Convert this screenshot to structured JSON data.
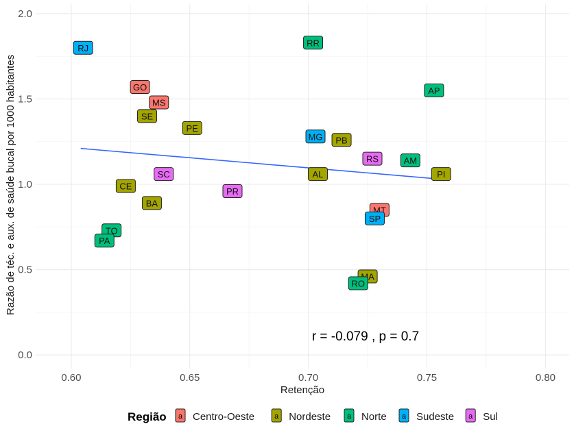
{
  "chart_data": {
    "type": "scatter",
    "xlabel": "Retenção",
    "ylabel": "Razão de téc. e aux. de saúde bucal por 1000 habitantes",
    "xlim": [
      0.585,
      0.81
    ],
    "ylim": [
      -0.08,
      2.06
    ],
    "x_ticks": [
      0.6,
      0.65,
      0.7,
      0.75,
      0.8
    ],
    "x_tick_labels": [
      "0.60",
      "0.65",
      "0.70",
      "0.75",
      "0.80"
    ],
    "y_ticks": [
      0.0,
      0.5,
      1.0,
      1.5,
      2.0
    ],
    "y_tick_labels": [
      "0.0",
      "0.5",
      "1.0",
      "1.5",
      "2.0"
    ],
    "grid": true,
    "annotation": "r = -0.079 , p = 0.7",
    "trendline": {
      "x": [
        0.604,
        0.756
      ],
      "y": [
        1.21,
        1.03
      ]
    },
    "legend": {
      "title": "Região",
      "key_glyph": "a",
      "position": "bottom",
      "entries": [
        {
          "name": "Centro-Oeste",
          "color": "#F8766D"
        },
        {
          "name": "Nordeste",
          "color": "#A3A500"
        },
        {
          "name": "Norte",
          "color": "#00BF7D"
        },
        {
          "name": "Sudeste",
          "color": "#00B0F6"
        },
        {
          "name": "Sul",
          "color": "#E76BF3"
        }
      ]
    },
    "points": [
      {
        "label": "RJ",
        "x": 0.605,
        "y": 1.8,
        "region": "Sudeste"
      },
      {
        "label": "GO",
        "x": 0.629,
        "y": 1.57,
        "region": "Centro-Oeste"
      },
      {
        "label": "MS",
        "x": 0.637,
        "y": 1.48,
        "region": "Centro-Oeste"
      },
      {
        "label": "SE",
        "x": 0.632,
        "y": 1.4,
        "region": "Nordeste"
      },
      {
        "label": "PE",
        "x": 0.651,
        "y": 1.33,
        "region": "Nordeste"
      },
      {
        "label": "RR",
        "x": 0.702,
        "y": 1.83,
        "region": "Norte"
      },
      {
        "label": "AP",
        "x": 0.753,
        "y": 1.55,
        "region": "Norte"
      },
      {
        "label": "MG",
        "x": 0.703,
        "y": 1.28,
        "region": "Sudeste"
      },
      {
        "label": "PB",
        "x": 0.714,
        "y": 1.26,
        "region": "Nordeste"
      },
      {
        "label": "RS",
        "x": 0.727,
        "y": 1.15,
        "region": "Sul"
      },
      {
        "label": "AM",
        "x": 0.743,
        "y": 1.14,
        "region": "Norte"
      },
      {
        "label": "AL",
        "x": 0.704,
        "y": 1.06,
        "region": "Nordeste"
      },
      {
        "label": "PI",
        "x": 0.756,
        "y": 1.06,
        "region": "Nordeste"
      },
      {
        "label": "CE",
        "x": 0.623,
        "y": 0.99,
        "region": "Nordeste"
      },
      {
        "label": "SC",
        "x": 0.639,
        "y": 1.06,
        "region": "Sul"
      },
      {
        "label": "PR",
        "x": 0.668,
        "y": 0.96,
        "region": "Sul"
      },
      {
        "label": "BA",
        "x": 0.634,
        "y": 0.89,
        "region": "Nordeste"
      },
      {
        "label": "MT",
        "x": 0.73,
        "y": 0.85,
        "region": "Centro-Oeste"
      },
      {
        "label": "SP",
        "x": 0.728,
        "y": 0.8,
        "region": "Sudeste"
      },
      {
        "label": "TO",
        "x": 0.617,
        "y": 0.73,
        "region": "Norte"
      },
      {
        "label": "PA",
        "x": 0.614,
        "y": 0.67,
        "region": "Norte"
      },
      {
        "label": "MA",
        "x": 0.725,
        "y": 0.46,
        "region": "Nordeste"
      },
      {
        "label": "RO",
        "x": 0.721,
        "y": 0.42,
        "region": "Norte"
      }
    ]
  }
}
